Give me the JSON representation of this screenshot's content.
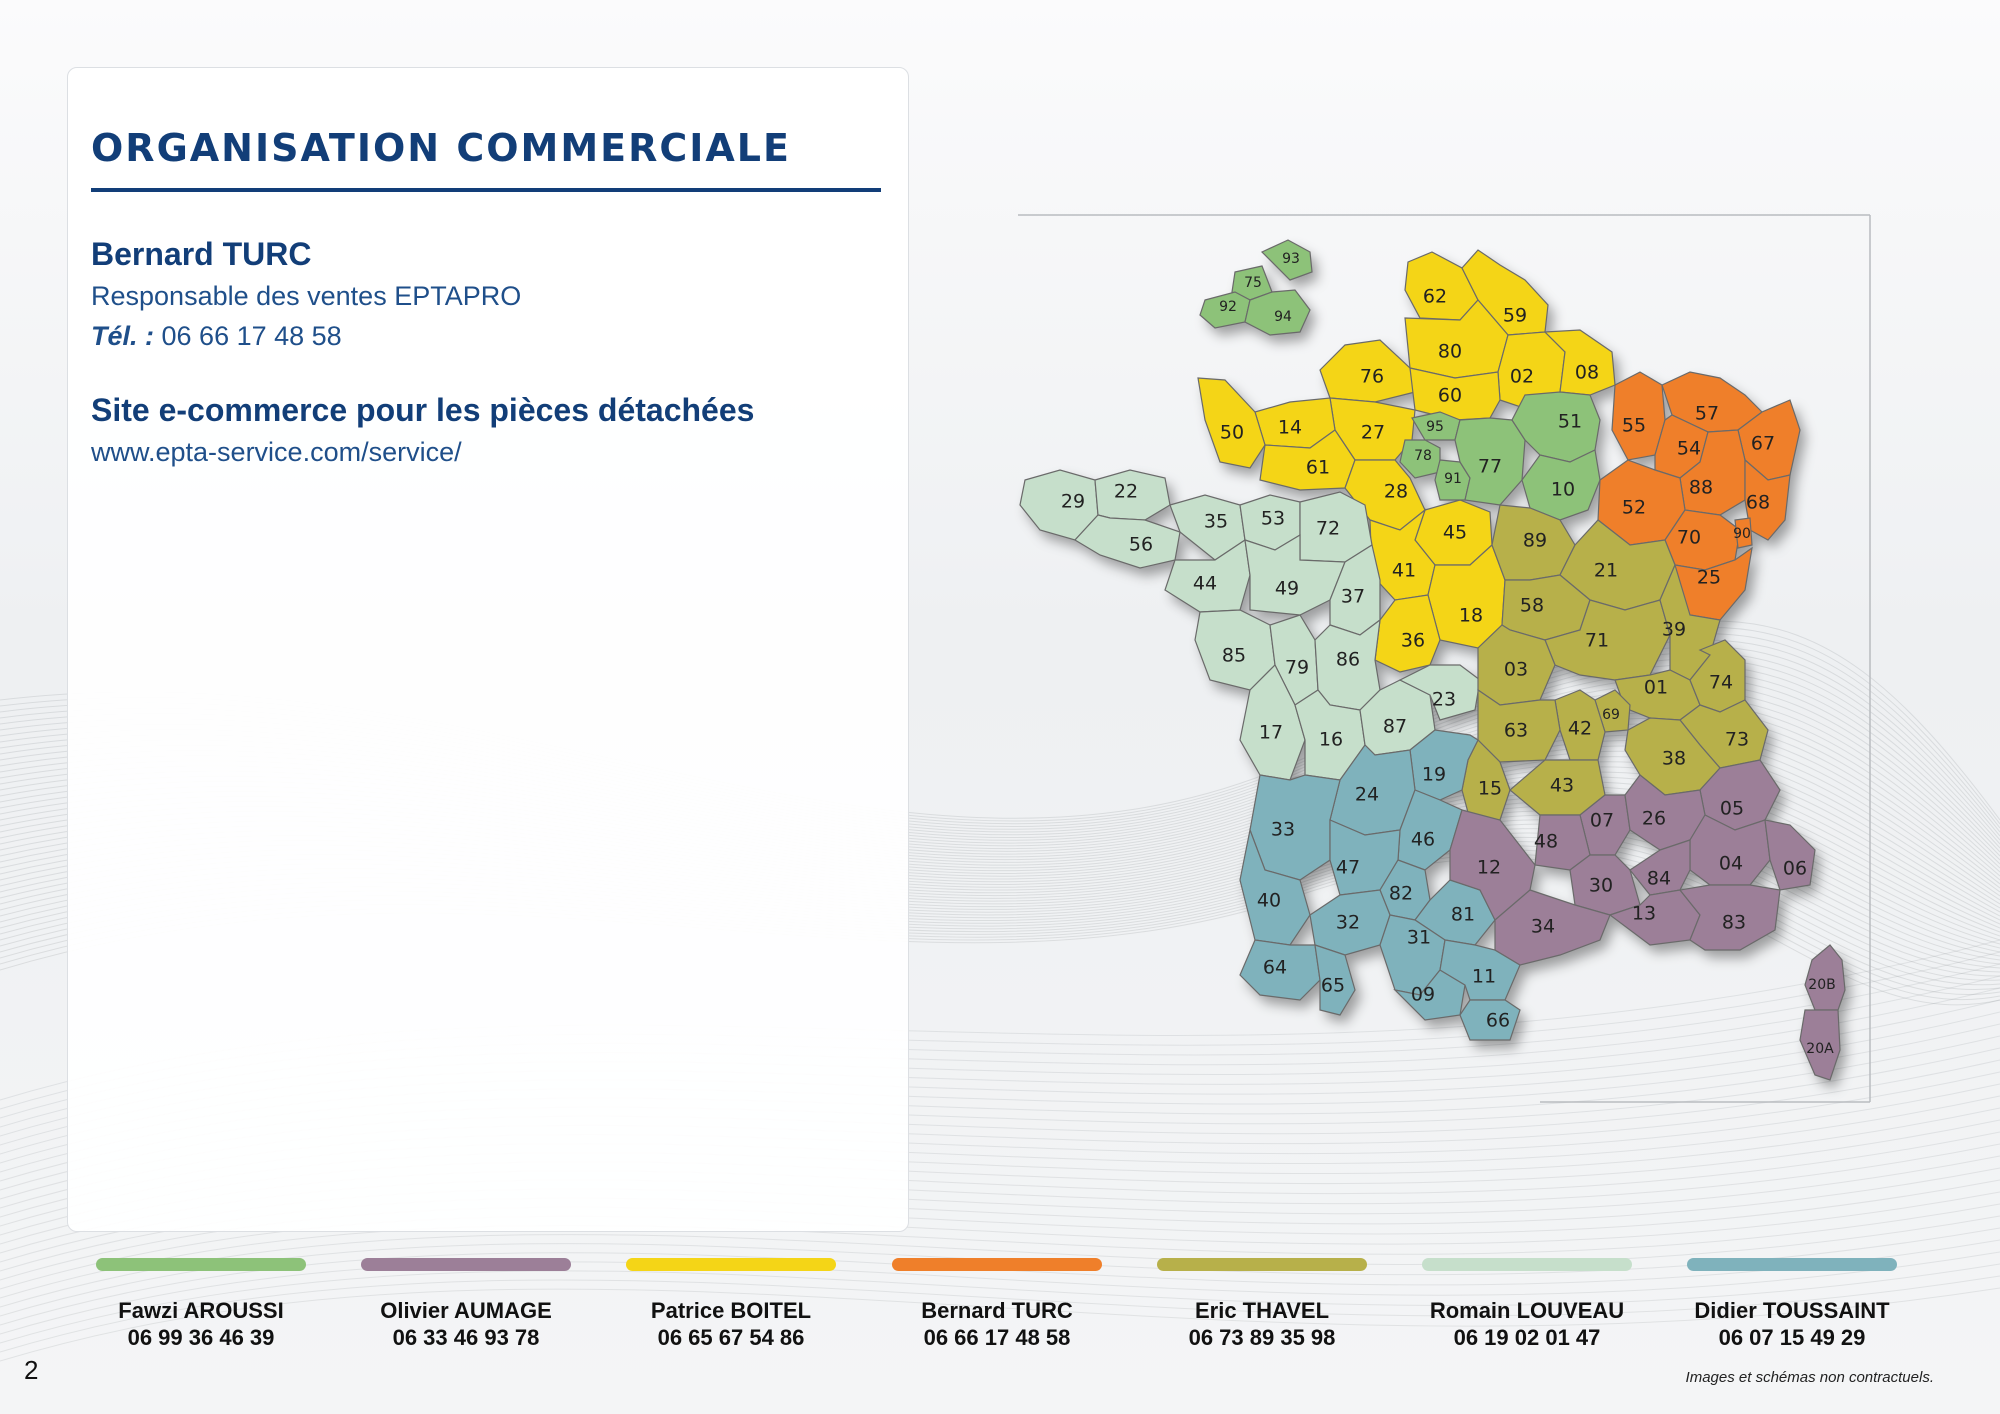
{
  "page": {
    "title": "ORGANISATION COMMERCIALE",
    "number": "2",
    "disclaimer": "Images et schémas non contractuels."
  },
  "contact": {
    "name": "Bernard TURC",
    "role": "Responsable des ventes EPTAPRO",
    "tel_label": "Tél. :",
    "tel": " 06 66 17 48 58"
  },
  "shop": {
    "title": "Site e-commerce pour les pièces détachées",
    "url": "www.epta-service.com/service/"
  },
  "colors": {
    "green": "#8dc279",
    "mauve": "#9c7f98",
    "yellow": "#f4d517",
    "orange": "#ef7f2a",
    "olive": "#b7b04a",
    "pale": "#c6dfcb",
    "teal": "#7fb2bc",
    "navy": "#123e78"
  },
  "legend": [
    {
      "name": "Fawzi AROUSSI",
      "phone": "06 99 36 46 39",
      "color": "#8dc279"
    },
    {
      "name": "Olivier AUMAGE",
      "phone": "06 33 46 93 78",
      "color": "#9c7f98"
    },
    {
      "name": "Patrice BOITEL",
      "phone": "06 65 67 54 86",
      "color": "#f4d517"
    },
    {
      "name": "Bernard TURC",
      "phone": "06 66 17 48 58",
      "color": "#ef7f2a"
    },
    {
      "name": "Eric THAVEL",
      "phone": "06 73 89 35 98",
      "color": "#b7b04a"
    },
    {
      "name": "Romain LOUVEAU",
      "phone": "06 19 02 01 47",
      "color": "#c6dfcb"
    },
    {
      "name": "Didier TOUSSAINT",
      "phone": "06 07 15 49 29",
      "color": "#7fb2bc"
    }
  ],
  "map": {
    "departments": [
      {
        "code": "62",
        "region": "yellow"
      },
      {
        "code": "59",
        "region": "yellow"
      },
      {
        "code": "80",
        "region": "yellow"
      },
      {
        "code": "02",
        "region": "yellow"
      },
      {
        "code": "08",
        "region": "yellow"
      },
      {
        "code": "76",
        "region": "yellow"
      },
      {
        "code": "60",
        "region": "yellow"
      },
      {
        "code": "27",
        "region": "yellow"
      },
      {
        "code": "14",
        "region": "yellow"
      },
      {
        "code": "50",
        "region": "yellow"
      },
      {
        "code": "61",
        "region": "yellow"
      },
      {
        "code": "28",
        "region": "yellow"
      },
      {
        "code": "45",
        "region": "yellow"
      },
      {
        "code": "41",
        "region": "yellow"
      },
      {
        "code": "18",
        "region": "yellow"
      },
      {
        "code": "36",
        "region": "yellow"
      },
      {
        "code": "93",
        "region": "green"
      },
      {
        "code": "75",
        "region": "green"
      },
      {
        "code": "92",
        "region": "green"
      },
      {
        "code": "94",
        "region": "green"
      },
      {
        "code": "95",
        "region": "green"
      },
      {
        "code": "78",
        "region": "green"
      },
      {
        "code": "91",
        "region": "green"
      },
      {
        "code": "77",
        "region": "green"
      },
      {
        "code": "51",
        "region": "green"
      },
      {
        "code": "10",
        "region": "green"
      },
      {
        "code": "55",
        "region": "orange"
      },
      {
        "code": "57",
        "region": "orange"
      },
      {
        "code": "54",
        "region": "orange"
      },
      {
        "code": "67",
        "region": "orange"
      },
      {
        "code": "88",
        "region": "orange"
      },
      {
        "code": "68",
        "region": "orange"
      },
      {
        "code": "52",
        "region": "orange"
      },
      {
        "code": "70",
        "region": "orange"
      },
      {
        "code": "90",
        "region": "orange"
      },
      {
        "code": "25",
        "region": "orange"
      },
      {
        "code": "29",
        "region": "pale"
      },
      {
        "code": "22",
        "region": "pale"
      },
      {
        "code": "56",
        "region": "pale"
      },
      {
        "code": "35",
        "region": "pale"
      },
      {
        "code": "53",
        "region": "pale"
      },
      {
        "code": "72",
        "region": "pale"
      },
      {
        "code": "44",
        "region": "pale"
      },
      {
        "code": "49",
        "region": "pale"
      },
      {
        "code": "37",
        "region": "pale"
      },
      {
        "code": "85",
        "region": "pale"
      },
      {
        "code": "79",
        "region": "pale"
      },
      {
        "code": "86",
        "region": "pale"
      },
      {
        "code": "17",
        "region": "pale"
      },
      {
        "code": "16",
        "region": "pale"
      },
      {
        "code": "87",
        "region": "pale"
      },
      {
        "code": "23",
        "region": "pale"
      },
      {
        "code": "89",
        "region": "olive"
      },
      {
        "code": "21",
        "region": "olive"
      },
      {
        "code": "58",
        "region": "olive"
      },
      {
        "code": "71",
        "region": "olive"
      },
      {
        "code": "39",
        "region": "olive"
      },
      {
        "code": "03",
        "region": "olive"
      },
      {
        "code": "01",
        "region": "olive"
      },
      {
        "code": "74",
        "region": "olive"
      },
      {
        "code": "69",
        "region": "olive"
      },
      {
        "code": "42",
        "region": "olive"
      },
      {
        "code": "63",
        "region": "olive"
      },
      {
        "code": "73",
        "region": "olive"
      },
      {
        "code": "38",
        "region": "olive"
      },
      {
        "code": "15",
        "region": "olive"
      },
      {
        "code": "43",
        "region": "olive"
      },
      {
        "code": "19",
        "region": "teal"
      },
      {
        "code": "24",
        "region": "teal"
      },
      {
        "code": "33",
        "region": "teal"
      },
      {
        "code": "46",
        "region": "teal"
      },
      {
        "code": "47",
        "region": "teal"
      },
      {
        "code": "82",
        "region": "teal"
      },
      {
        "code": "40",
        "region": "teal"
      },
      {
        "code": "32",
        "region": "teal"
      },
      {
        "code": "81",
        "region": "teal"
      },
      {
        "code": "31",
        "region": "teal"
      },
      {
        "code": "64",
        "region": "teal"
      },
      {
        "code": "65",
        "region": "teal"
      },
      {
        "code": "09",
        "region": "teal"
      },
      {
        "code": "11",
        "region": "teal"
      },
      {
        "code": "66",
        "region": "teal"
      },
      {
        "code": "05",
        "region": "mauve"
      },
      {
        "code": "07",
        "region": "mauve"
      },
      {
        "code": "26",
        "region": "mauve"
      },
      {
        "code": "48",
        "region": "mauve"
      },
      {
        "code": "04",
        "region": "mauve"
      },
      {
        "code": "06",
        "region": "mauve"
      },
      {
        "code": "12",
        "region": "mauve"
      },
      {
        "code": "30",
        "region": "mauve"
      },
      {
        "code": "84",
        "region": "mauve"
      },
      {
        "code": "13",
        "region": "mauve"
      },
      {
        "code": "34",
        "region": "mauve"
      },
      {
        "code": "83",
        "region": "mauve"
      },
      {
        "code": "20B",
        "region": "mauve"
      },
      {
        "code": "20A",
        "region": "mauve"
      }
    ]
  }
}
